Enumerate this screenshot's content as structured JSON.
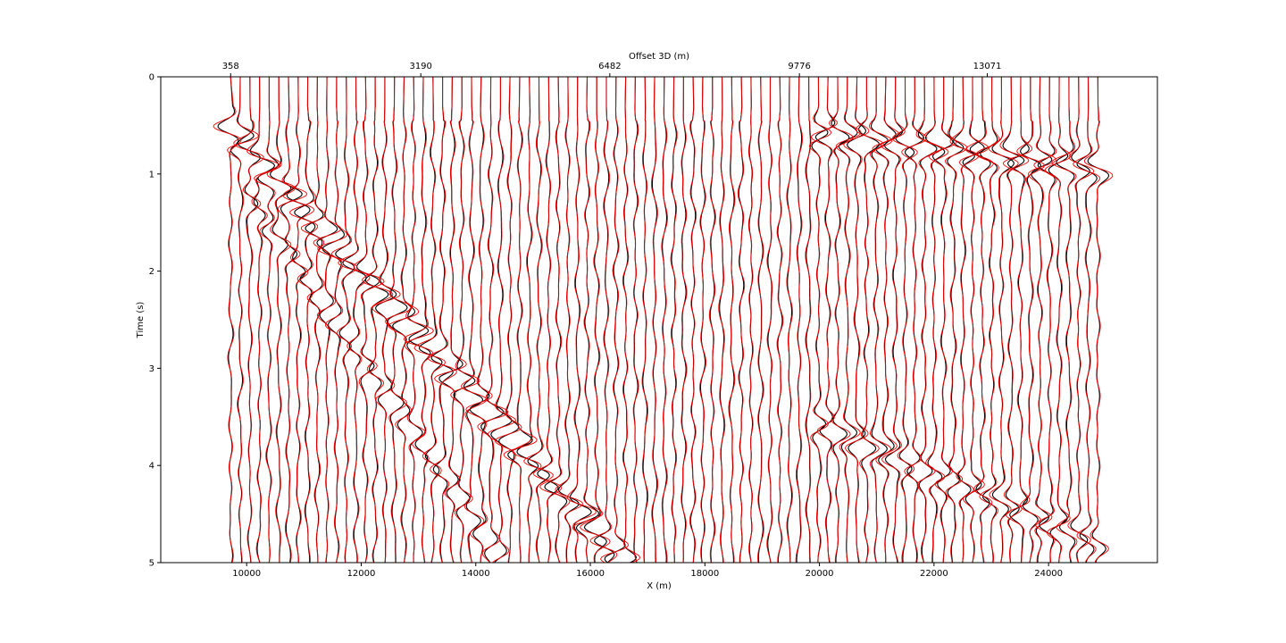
{
  "chart_data": {
    "type": "line",
    "xlabel": "X (m)",
    "ylabel": "Time (s)",
    "top_axis_label": "Offset 3D (m)",
    "xlim": [
      8500,
      25900
    ],
    "ylim": [
      0,
      5
    ],
    "y_inverted": true,
    "grid": false,
    "x_ticks": [
      10000,
      12000,
      14000,
      16000,
      18000,
      20000,
      22000,
      24000
    ],
    "x_tick_labels": [
      "10000",
      "12000",
      "14000",
      "16000",
      "18000",
      "20000",
      "22000",
      "24000"
    ],
    "y_ticks": [
      0,
      1,
      2,
      3,
      4,
      5
    ],
    "y_tick_labels": [
      "0",
      "1",
      "2",
      "3",
      "4",
      "5"
    ],
    "top_ticks": [
      {
        "x": 9720,
        "label": "358"
      },
      {
        "x": 13040,
        "label": "3190"
      },
      {
        "x": 16340,
        "label": "6482"
      },
      {
        "x": 19650,
        "label": "9776"
      },
      {
        "x": 22930,
        "label": "13071"
      }
    ],
    "trace_x_start": 9720,
    "trace_x_end": 24860,
    "trace_count": 91,
    "series": [
      {
        "color": "#000000",
        "amplitude_scale": 1.0
      },
      {
        "color": "#ff0000",
        "amplitude_scale": 1.35
      }
    ],
    "events": [
      {
        "t_start": 0.55,
        "t_end": 5.0,
        "x_start": 9720,
        "x_end": 16600,
        "strength": 1.0
      },
      {
        "t_start": 1.2,
        "t_end": 5.0,
        "x_start": 10000,
        "x_end": 14500,
        "strength": 0.6
      },
      {
        "t_start": 0.6,
        "t_end": 0.95,
        "x_start": 20000,
        "x_end": 24860,
        "strength": 0.9
      },
      {
        "t_start": 3.6,
        "t_end": 4.8,
        "x_start": 20000,
        "x_end": 24860,
        "strength": 0.7
      }
    ]
  }
}
